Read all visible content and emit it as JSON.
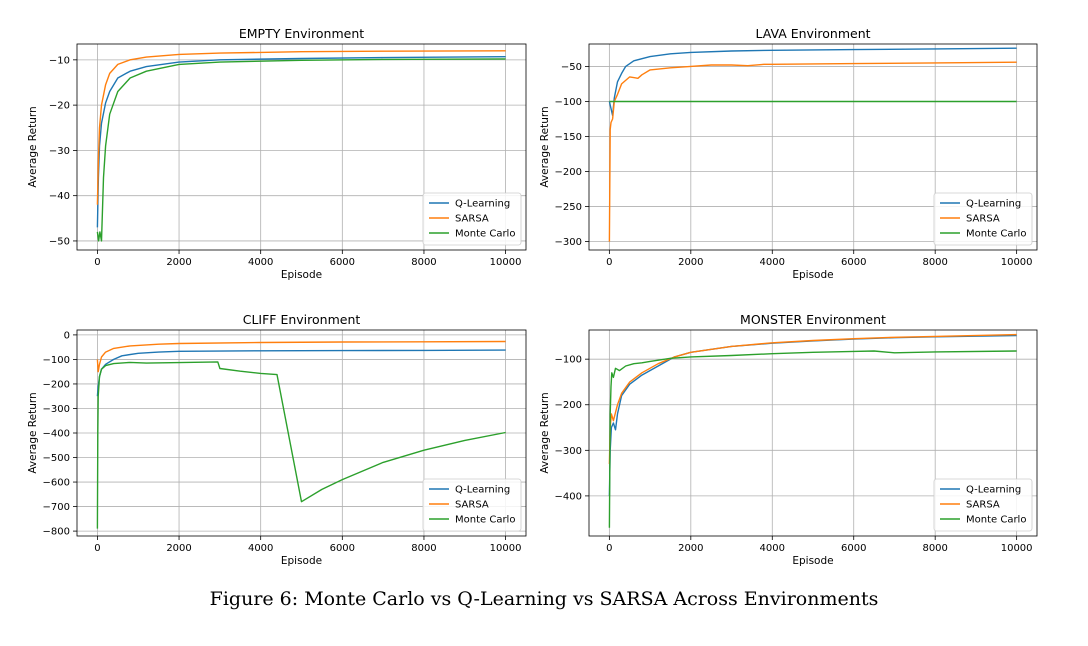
{
  "caption": "Figure 6: Monte Carlo vs Q-Learning vs SARSA Across Environments",
  "colors": {
    "Q-Learning": "#1f77b4",
    "SARSA": "#ff7f0e",
    "Monte Carlo": "#2ca02c"
  },
  "chart_data": [
    {
      "type": "line",
      "title": "EMPTY Environment",
      "xlabel": "Episode",
      "ylabel": "Average Return",
      "xlim": [
        -500,
        10500
      ],
      "ylim": [
        -52,
        -6.5
      ],
      "xticks": [
        0,
        2000,
        4000,
        6000,
        8000,
        10000
      ],
      "yticks": [
        -50,
        -40,
        -30,
        -20,
        -10
      ],
      "grid": true,
      "legend": "lower-right",
      "series": [
        {
          "name": "Q-Learning",
          "x": [
            0,
            25,
            50,
            100,
            200,
            300,
            500,
            800,
            1200,
            2000,
            3000,
            5000,
            7000,
            10000
          ],
          "y": [
            -47,
            -36,
            -29,
            -24,
            -19.5,
            -17,
            -14,
            -12.5,
            -11.5,
            -10.5,
            -10.0,
            -9.7,
            -9.5,
            -9.3
          ]
        },
        {
          "name": "SARSA",
          "x": [
            0,
            25,
            50,
            100,
            200,
            300,
            500,
            800,
            1200,
            2000,
            3000,
            5000,
            7000,
            10000
          ],
          "y": [
            -42,
            -32,
            -25,
            -20,
            -15.5,
            -13,
            -11,
            -10,
            -9.4,
            -8.8,
            -8.5,
            -8.2,
            -8.1,
            -8.0
          ]
        },
        {
          "name": "Monte Carlo",
          "x": [
            0,
            30,
            60,
            100,
            150,
            200,
            300,
            500,
            800,
            1200,
            2000,
            3000,
            5000,
            7000,
            10000
          ],
          "y": [
            -48,
            -50,
            -48,
            -50,
            -36,
            -29,
            -22,
            -17,
            -14,
            -12.5,
            -11,
            -10.5,
            -10.1,
            -9.9,
            -9.8
          ]
        }
      ]
    },
    {
      "type": "line",
      "title": "LAVA Environment",
      "xlabel": "Episode",
      "ylabel": "Average Return",
      "xlim": [
        -500,
        10500
      ],
      "ylim": [
        -312,
        -18
      ],
      "xticks": [
        0,
        2000,
        4000,
        6000,
        8000,
        10000
      ],
      "yticks": [
        -300,
        -250,
        -200,
        -150,
        -100,
        -50
      ],
      "grid": true,
      "legend": "lower-right",
      "series": [
        {
          "name": "Q-Learning",
          "x": [
            0,
            40,
            80,
            120,
            200,
            300,
            400,
            600,
            1000,
            1500,
            2000,
            3000,
            4000,
            6000,
            8000,
            10000
          ],
          "y": [
            -100,
            -110,
            -120,
            -95,
            -72,
            -60,
            -50,
            -42,
            -36,
            -32,
            -30,
            -28,
            -27,
            -26,
            -25,
            -24
          ]
        },
        {
          "name": "SARSA",
          "x": [
            0,
            20,
            40,
            80,
            120,
            200,
            300,
            500,
            700,
            800,
            1000,
            1500,
            2000,
            2500,
            3000,
            3400,
            3800,
            4000,
            6000,
            8000,
            10000
          ],
          "y": [
            -300,
            -140,
            -130,
            -125,
            -100,
            -90,
            -75,
            -65,
            -67,
            -62,
            -55,
            -52,
            -50,
            -48,
            -48,
            -49,
            -47,
            -47,
            -46,
            -45,
            -44
          ]
        },
        {
          "name": "Monte Carlo",
          "x": [
            0,
            10,
            20,
            40,
            10000
          ],
          "y": [
            -100,
            -100,
            -100,
            -100,
            -100
          ]
        }
      ]
    },
    {
      "type": "line",
      "title": "CLIFF Environment",
      "xlabel": "Episode",
      "ylabel": "Average Return",
      "xlim": [
        -500,
        10500
      ],
      "ylim": [
        -820,
        20
      ],
      "xticks": [
        0,
        2000,
        4000,
        6000,
        8000,
        10000
      ],
      "yticks": [
        -800,
        -700,
        -600,
        -500,
        -400,
        -300,
        -200,
        -100,
        0
      ],
      "grid": true,
      "legend": "lower-right",
      "series": [
        {
          "name": "Q-Learning",
          "x": [
            0,
            20,
            50,
            100,
            200,
            400,
            600,
            1000,
            1500,
            2000,
            4000,
            6000,
            8000,
            10000
          ],
          "y": [
            -250,
            -210,
            -170,
            -140,
            -120,
            -100,
            -85,
            -75,
            -70,
            -67,
            -65,
            -64,
            -63,
            -62
          ]
        },
        {
          "name": "SARSA",
          "x": [
            0,
            20,
            50,
            100,
            200,
            400,
            800,
            1500,
            2000,
            4000,
            6000,
            8000,
            10000
          ],
          "y": [
            -100,
            -150,
            -120,
            -90,
            -70,
            -55,
            -45,
            -38,
            -35,
            -31,
            -29,
            -28,
            -27
          ]
        },
        {
          "name": "Monte Carlo",
          "x": [
            0,
            10,
            20,
            50,
            100,
            200,
            400,
            800,
            1200,
            2000,
            2950,
            3000,
            3500,
            4000,
            4400,
            5000,
            5500,
            6000,
            7000,
            8000,
            9000,
            10000
          ],
          "y": [
            -790,
            -400,
            -250,
            -170,
            -140,
            -125,
            -117,
            -112,
            -115,
            -113,
            -110,
            -137,
            -148,
            -157,
            -162,
            -680,
            -630,
            -590,
            -520,
            -470,
            -430,
            -398
          ]
        }
      ]
    },
    {
      "type": "line",
      "title": "MONSTER Environment",
      "xlabel": "Episode",
      "ylabel": "Average Return",
      "xlim": [
        -500,
        10500
      ],
      "ylim": [
        -488,
        -36
      ],
      "xticks": [
        0,
        2000,
        4000,
        6000,
        8000,
        10000
      ],
      "yticks": [
        -400,
        -300,
        -200,
        -100
      ],
      "grid": true,
      "legend": "lower-right",
      "series": [
        {
          "name": "Q-Learning",
          "x": [
            0,
            20,
            50,
            100,
            150,
            200,
            300,
            500,
            800,
            1200,
            1600,
            2000,
            3000,
            4000,
            5000,
            6000,
            7000,
            8000,
            10000
          ],
          "y": [
            -400,
            -300,
            -250,
            -240,
            -255,
            -220,
            -180,
            -155,
            -135,
            -115,
            -95,
            -85,
            -72,
            -65,
            -60,
            -56,
            -53,
            -51,
            -48
          ]
        },
        {
          "name": "SARSA",
          "x": [
            0,
            20,
            50,
            100,
            200,
            300,
            500,
            800,
            1200,
            1600,
            2000,
            3000,
            4000,
            5000,
            6000,
            7000,
            8000,
            10000
          ],
          "y": [
            -330,
            -250,
            -220,
            -235,
            -200,
            -175,
            -150,
            -130,
            -110,
            -95,
            -85,
            -72,
            -64,
            -59,
            -55,
            -52,
            -50,
            -46
          ]
        },
        {
          "name": "Monte Carlo",
          "x": [
            0,
            20,
            40,
            60,
            100,
            150,
            250,
            400,
            600,
            800,
            1000,
            1500,
            2000,
            3000,
            4000,
            5000,
            6000,
            6500,
            7000,
            8000,
            10000
          ],
          "y": [
            -470,
            -220,
            -160,
            -130,
            -140,
            -120,
            -125,
            -115,
            -110,
            -108,
            -105,
            -98,
            -95,
            -92,
            -88,
            -85,
            -83,
            -82,
            -86,
            -84,
            -82
          ]
        }
      ]
    }
  ]
}
